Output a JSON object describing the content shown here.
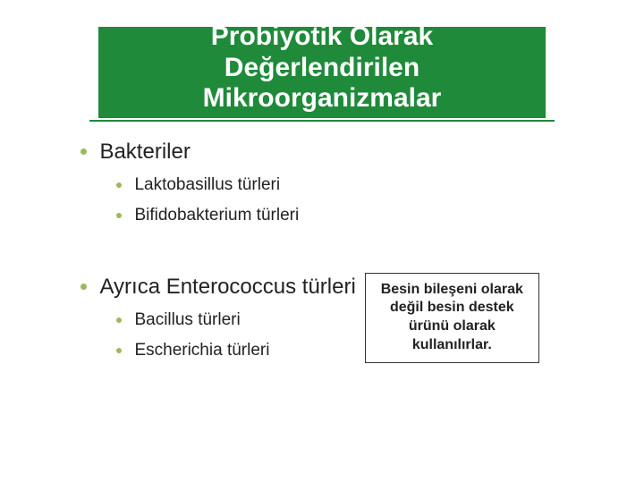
{
  "title": "Probiyotik Olarak Değerlendirilen Mikroorganizmalar",
  "colors": {
    "banner_bg": "#1e8a3a",
    "banner_text": "#ffffff",
    "bullet": "#9db85a",
    "body_text": "#222222",
    "note_border": "#333333"
  },
  "typography": {
    "title_fontsize": 30,
    "level1_fontsize": 24,
    "level2_fontsize": 19,
    "note_fontsize": 16
  },
  "section1": {
    "heading": "Bakteriler",
    "items": [
      {
        "label": "Laktobasillus türleri"
      },
      {
        "label": "Bifidobakterium türleri"
      }
    ]
  },
  "section2": {
    "heading": "Ayrıca Enterococcus türleri",
    "items": [
      {
        "label": "Bacillus türleri"
      },
      {
        "label": "Escherichia türleri"
      }
    ]
  },
  "note": "Besin bileşeni olarak değil besin destek ürünü olarak kullanılırlar."
}
